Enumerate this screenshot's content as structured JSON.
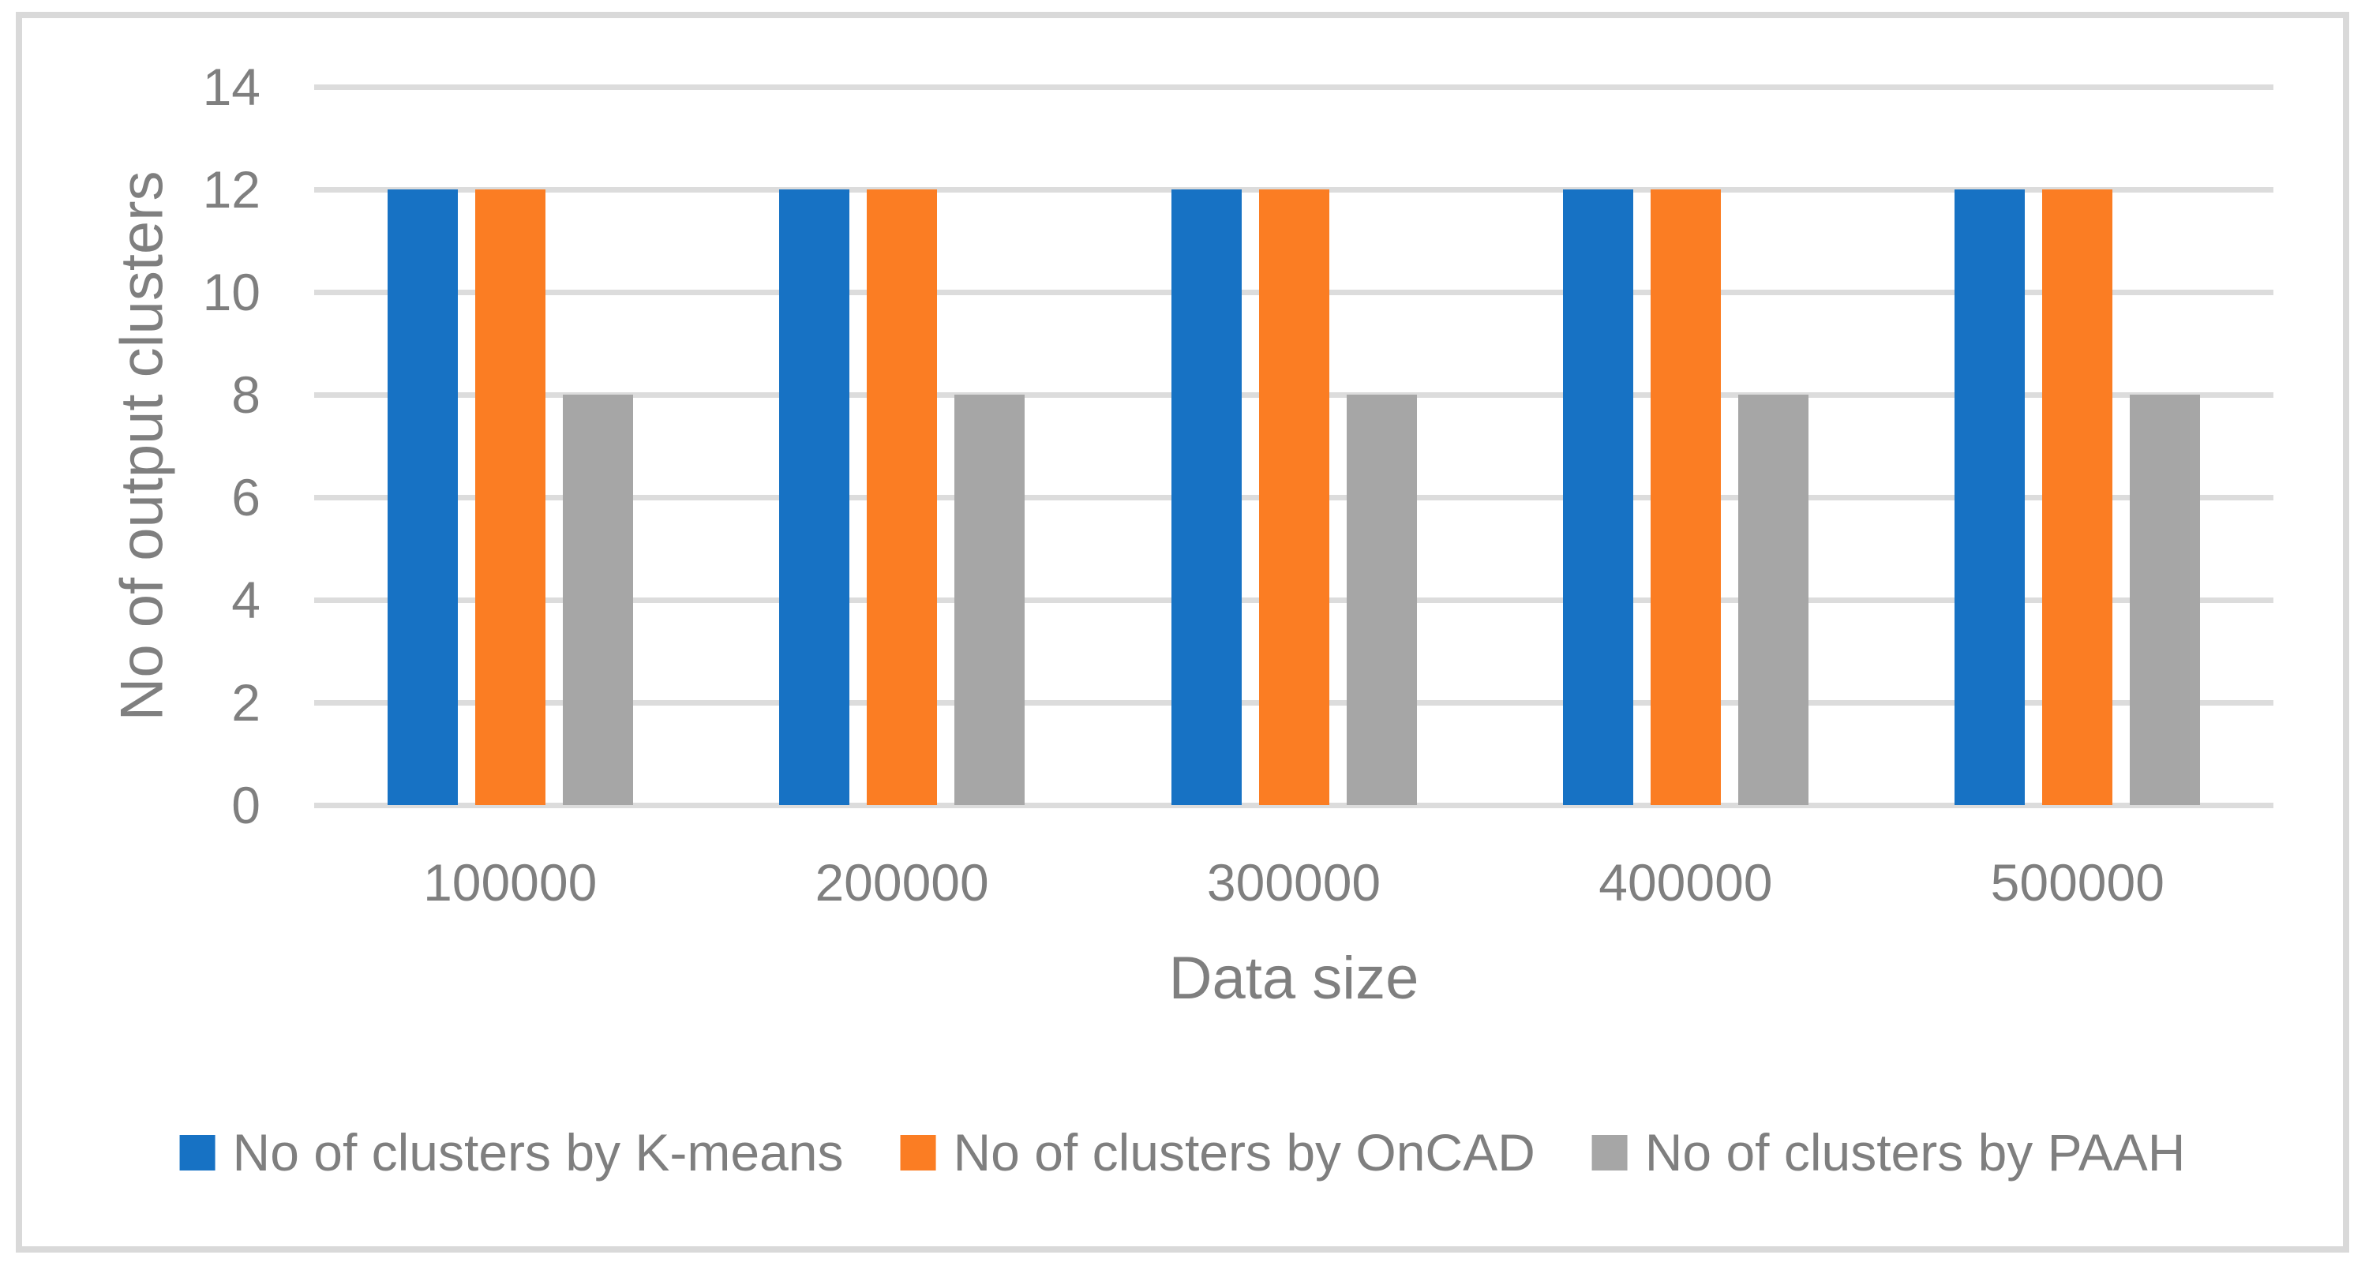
{
  "figure": {
    "description": "Grouped bar chart comparing number of output clusters produced by three algorithms across data sizes"
  },
  "chart_data": {
    "type": "bar",
    "categories": [
      "100000",
      "200000",
      "300000",
      "400000",
      "500000"
    ],
    "series": [
      {
        "name": "No of clusters by K-means",
        "color": "#1772C4",
        "values": [
          12,
          12,
          12,
          12,
          12
        ]
      },
      {
        "name": "No of clusters by OnCAD",
        "color": "#FB7D23",
        "values": [
          12,
          12,
          12,
          12,
          12
        ]
      },
      {
        "name": "No of clusters by PAAH",
        "color": "#A6A6A6",
        "values": [
          8,
          8,
          8,
          8,
          8
        ]
      }
    ],
    "title": "",
    "xlabel": "Data size",
    "ylabel": "No of output clusters",
    "ylim": [
      0,
      14
    ],
    "ytick_step": 2,
    "yticks": [
      "0",
      "2",
      "4",
      "6",
      "8",
      "10",
      "12",
      "14"
    ],
    "grid": "horizontal",
    "legend_position": "bottom",
    "gridline_color": "#DCDCDC",
    "frame_color": "#D9D9D9",
    "text_color": "#7F7F7F"
  }
}
